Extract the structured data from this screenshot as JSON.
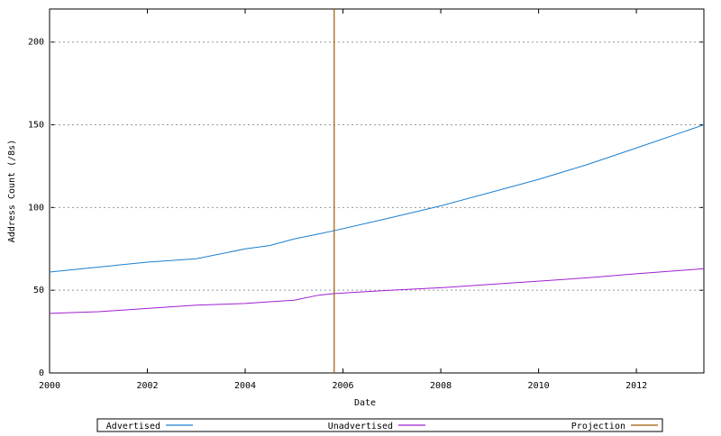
{
  "chart_data": {
    "type": "line",
    "xlabel": "Date",
    "ylabel": "Address Count (/8s)",
    "x": [
      2000,
      2001,
      2002,
      2003,
      2004,
      2004.5,
      2005,
      2005.5,
      2005.82,
      2007,
      2008,
      2009,
      2010,
      2011,
      2012,
      2013.38
    ],
    "series": [
      {
        "name": "Advertised",
        "color": "#1a7fd0",
        "values": [
          61,
          64,
          67,
          69,
          75,
          77,
          81,
          84,
          86,
          94,
          101,
          109,
          117,
          126,
          136,
          150
        ]
      },
      {
        "name": "Unadvertised",
        "color": "#a020d0",
        "values": [
          36,
          37,
          39,
          41,
          42,
          43,
          44,
          47,
          48,
          50,
          51.5,
          53.5,
          55.5,
          57.5,
          60,
          63
        ]
      }
    ],
    "vlines": [
      {
        "name": "Projection",
        "color": "#a05a00",
        "x": 2005.82
      }
    ],
    "xlim": [
      2000,
      2013.38
    ],
    "xticks": [
      2000,
      2002,
      2004,
      2006,
      2008,
      2010,
      2012
    ],
    "ylim": [
      0,
      220
    ],
    "yticks": [
      0,
      50,
      100,
      150,
      200
    ],
    "grid": true
  }
}
